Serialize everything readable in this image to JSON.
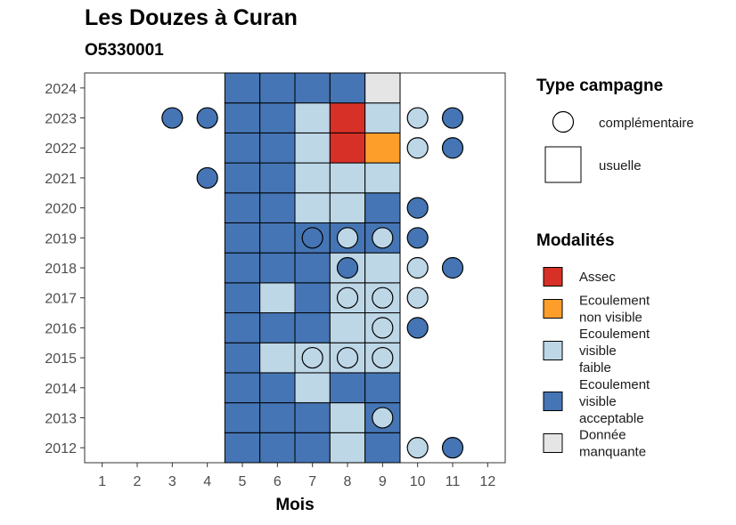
{
  "chart_data": {
    "type": "heatmap",
    "title": "Les Douzes à Curan",
    "subtitle": "O5330001",
    "xlabel": "Mois",
    "ylabel": "",
    "x_ticks": [
      1,
      2,
      3,
      4,
      5,
      6,
      7,
      8,
      9,
      10,
      11,
      12
    ],
    "y_ticks": [
      2012,
      2013,
      2014,
      2015,
      2016,
      2017,
      2018,
      2019,
      2020,
      2021,
      2022,
      2023,
      2024
    ],
    "grid": false,
    "colors": {
      "Assec": "#d73027",
      "Ecoulement non visible": "#fd9e2b",
      "Ecoulement visible faible": "#bdd7e7",
      "Ecoulement visible acceptable": "#4575b4",
      "Donnée manquante": "#e5e5e5"
    },
    "usuelle": [
      {
        "year": 2012,
        "months": [
          "EVA",
          "EVA",
          "EVA",
          "EVF",
          "EVA"
        ]
      },
      {
        "year": 2013,
        "months": [
          "EVA",
          "EVA",
          "EVA",
          "EVF",
          "EVA"
        ]
      },
      {
        "year": 2014,
        "months": [
          "EVA",
          "EVA",
          "EVF",
          "EVA",
          "EVA"
        ]
      },
      {
        "year": 2015,
        "months": [
          "EVA",
          "EVF",
          "EVF",
          "EVF",
          "EVF"
        ]
      },
      {
        "year": 2016,
        "months": [
          "EVA",
          "EVA",
          "EVA",
          "EVF",
          "EVF"
        ]
      },
      {
        "year": 2017,
        "months": [
          "EVA",
          "EVF",
          "EVA",
          "EVF",
          "EVF"
        ]
      },
      {
        "year": 2018,
        "months": [
          "EVA",
          "EVA",
          "EVA",
          "EVF",
          "EVF"
        ]
      },
      {
        "year": 2019,
        "months": [
          "EVA",
          "EVA",
          "EVA",
          "EVA",
          "EVA"
        ]
      },
      {
        "year": 2020,
        "months": [
          "EVA",
          "EVA",
          "EVF",
          "EVF",
          "EVA"
        ]
      },
      {
        "year": 2021,
        "months": [
          "EVA",
          "EVA",
          "EVF",
          "EVF",
          "EVF"
        ]
      },
      {
        "year": 2022,
        "months": [
          "EVA",
          "EVA",
          "EVF",
          "A",
          "ENV"
        ]
      },
      {
        "year": 2023,
        "months": [
          "EVA",
          "EVA",
          "EVF",
          "A",
          "EVF"
        ]
      },
      {
        "year": 2024,
        "months": [
          "EVA",
          "EVA",
          "EVA",
          "EVA",
          "DM"
        ]
      }
    ],
    "usuelle_first_month": 5,
    "complementaire": [
      {
        "year": 2023,
        "month": 3,
        "code": "EVA"
      },
      {
        "year": 2023,
        "month": 4,
        "code": "EVA"
      },
      {
        "year": 2023,
        "month": 10,
        "code": "EVF"
      },
      {
        "year": 2023,
        "month": 11,
        "code": "EVA"
      },
      {
        "year": 2022,
        "month": 10,
        "code": "EVF"
      },
      {
        "year": 2022,
        "month": 11,
        "code": "EVA"
      },
      {
        "year": 2021,
        "month": 4,
        "code": "EVA"
      },
      {
        "year": 2020,
        "month": 10,
        "code": "EVA"
      },
      {
        "year": 2019,
        "month": 7,
        "code": "EVA"
      },
      {
        "year": 2019,
        "month": 8,
        "code": "EVF"
      },
      {
        "year": 2019,
        "month": 9,
        "code": "EVF"
      },
      {
        "year": 2019,
        "month": 10,
        "code": "EVA"
      },
      {
        "year": 2018,
        "month": 8,
        "code": "EVA"
      },
      {
        "year": 2018,
        "month": 10,
        "code": "EVF"
      },
      {
        "year": 2018,
        "month": 11,
        "code": "EVA"
      },
      {
        "year": 2017,
        "month": 8,
        "code": "EVF"
      },
      {
        "year": 2017,
        "month": 9,
        "code": "EVF"
      },
      {
        "year": 2017,
        "month": 10,
        "code": "EVF"
      },
      {
        "year": 2016,
        "month": 9,
        "code": "EVF"
      },
      {
        "year": 2016,
        "month": 10,
        "code": "EVA"
      },
      {
        "year": 2015,
        "month": 7,
        "code": "EVF"
      },
      {
        "year": 2015,
        "month": 8,
        "code": "EVF"
      },
      {
        "year": 2015,
        "month": 9,
        "code": "EVF"
      },
      {
        "year": 2013,
        "month": 9,
        "code": "EVF"
      },
      {
        "year": 2012,
        "month": 10,
        "code": "EVF"
      },
      {
        "year": 2012,
        "month": 11,
        "code": "EVA"
      }
    ],
    "codes": {
      "A": "Assec",
      "ENV": "Ecoulement non visible",
      "EVF": "Ecoulement visible faible",
      "EVA": "Ecoulement visible acceptable",
      "DM": "Donnée manquante"
    },
    "legend_type": {
      "title": "Type campagne",
      "items": [
        "complémentaire",
        "usuelle"
      ]
    },
    "legend_modalites": {
      "title": "Modalités",
      "items": [
        {
          "code": "A",
          "lines": [
            "Assec"
          ]
        },
        {
          "code": "ENV",
          "lines": [
            "Ecoulement",
            "non visible"
          ]
        },
        {
          "code": "EVF",
          "lines": [
            "Ecoulement",
            "visible",
            "faible"
          ]
        },
        {
          "code": "EVA",
          "lines": [
            "Ecoulement",
            "visible",
            "acceptable"
          ]
        },
        {
          "code": "DM",
          "lines": [
            "Donnée",
            "manquante"
          ]
        }
      ]
    },
    "legend_placement": "right"
  }
}
